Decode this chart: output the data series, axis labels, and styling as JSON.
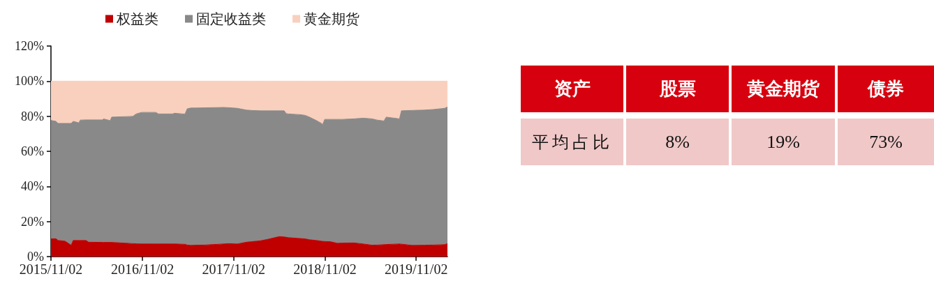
{
  "chart_data": [
    {
      "type": "area",
      "stacked": true,
      "legend": "top",
      "grid": false,
      "x": [
        "2015-11-02",
        "2015-11-22",
        "2015-11-30",
        "2015-12-28",
        "2016-01-22",
        "2016-01-30",
        "2016-02-22",
        "2016-02-27",
        "2016-03-21",
        "2016-04-01",
        "2016-05-27",
        "2016-05-30",
        "2016-06-26",
        "2016-07-02",
        "2016-09-24",
        "2016-10-08",
        "2016-10-30",
        "2016-12-25",
        "2017-01-05",
        "2017-03-02",
        "2017-03-10",
        "2017-04-21",
        "2017-04-30",
        "2017-05-14",
        "2017-06-02",
        "2017-07-09",
        "2017-09-22",
        "2017-10-11",
        "2017-11-17",
        "2017-12-23",
        "2018-01-12",
        "2018-02-17",
        "2018-03-17",
        "2018-05-03",
        "2018-05-23",
        "2018-05-31",
        "2018-06-09",
        "2018-07-26",
        "2018-08-15",
        "2018-09-01",
        "2018-09-28",
        "2018-10-18",
        "2018-10-24",
        "2018-11-01",
        "2018-11-23",
        "2018-12-21",
        "2019-01-10",
        "2019-02-26",
        "2019-04-04",
        "2019-05-10",
        "2019-05-30",
        "2019-06-26",
        "2019-07-05",
        "2019-08-27",
        "2019-09-04",
        "2019-10-16",
        "2019-12-03",
        "2020-01-08",
        "2020-02-24",
        "2020-03-06"
      ],
      "series": [
        {
          "name": "权益类",
          "color": "#c00000",
          "values": [
            10.1,
            10.2,
            9.2,
            8.8,
            6.5,
            9.2,
            9.2,
            9.2,
            9.2,
            8.2,
            8.1,
            8.1,
            8.1,
            8.1,
            7.4,
            7.3,
            7.2,
            7.2,
            7.2,
            7.2,
            7.2,
            7.0,
            6.6,
            6.4,
            6.5,
            6.6,
            7.2,
            7.4,
            7.2,
            8.2,
            8.5,
            9.0,
            9.8,
            11.4,
            11.2,
            11.0,
            10.8,
            10.3,
            10.1,
            9.6,
            9.2,
            8.8,
            8.7,
            8.6,
            8.5,
            7.6,
            7.7,
            7.8,
            7.2,
            6.5,
            6.6,
            6.8,
            6.9,
            7.2,
            7.1,
            6.4,
            6.5,
            6.6,
            6.8,
            7.4
          ]
        },
        {
          "name": "固定收益类",
          "color": "#898989",
          "values": [
            67.5,
            66.9,
            66.7,
            67.1,
            69.4,
            67.9,
            67.0,
            68.6,
            68.7,
            69.7,
            69.8,
            70.4,
            69.4,
            71.4,
            72.5,
            74.0,
            75.0,
            75.0,
            74.1,
            74.1,
            74.5,
            74.2,
            77.6,
            78.3,
            78.2,
            78.2,
            77.8,
            77.5,
            77.3,
            75.3,
            74.8,
            74.1,
            73.3,
            71.7,
            71.9,
            70.5,
            70.5,
            70.6,
            70.4,
            69.9,
            68.4,
            67.2,
            66.6,
            69.6,
            69.7,
            70.6,
            70.5,
            70.7,
            71.7,
            72.0,
            71.2,
            70.5,
            72.6,
            71.3,
            76.0,
            76.9,
            77.0,
            77.2,
            77.7,
            77.9
          ]
        },
        {
          "name": "黄金期货",
          "color": "#f9d0bd",
          "values": [
            22.4,
            22.9,
            24.1,
            24.1,
            24.1,
            22.9,
            23.8,
            22.2,
            22.1,
            22.1,
            22.1,
            21.5,
            22.5,
            20.5,
            20.1,
            18.7,
            17.8,
            17.8,
            18.7,
            18.7,
            18.3,
            18.8,
            15.8,
            15.3,
            15.3,
            15.2,
            15.0,
            15.1,
            15.5,
            16.5,
            16.7,
            16.9,
            16.9,
            16.9,
            16.9,
            18.5,
            18.7,
            19.1,
            19.5,
            20.5,
            22.4,
            24.0,
            24.7,
            21.8,
            21.8,
            21.8,
            21.8,
            21.5,
            21.1,
            21.5,
            22.2,
            22.7,
            20.5,
            21.5,
            16.9,
            16.7,
            16.5,
            16.2,
            15.5,
            14.7
          ]
        }
      ],
      "xlim": [
        "2015-11-02",
        "2020-03-06"
      ],
      "xticks": [
        {
          "value": "2015-11-02",
          "label": "2015/11/02"
        },
        {
          "value": "2016-11-02",
          "label": "2016/11/02"
        },
        {
          "value": "2017-11-02",
          "label": "2017/11/02"
        },
        {
          "value": "2018-11-02",
          "label": "2018/11/02"
        },
        {
          "value": "2019-11-02",
          "label": "2019/11/02"
        }
      ],
      "ylim": [
        0,
        120
      ],
      "yticks": [
        {
          "value": 0,
          "label": "0%"
        },
        {
          "value": 20,
          "label": "20%"
        },
        {
          "value": 40,
          "label": "40%"
        },
        {
          "value": 60,
          "label": "60%"
        },
        {
          "value": 80,
          "label": "80%"
        },
        {
          "value": 100,
          "label": "100%"
        },
        {
          "value": 120,
          "label": "120%"
        }
      ]
    },
    {
      "type": "other",
      "xlabel": "资产",
      "ylabel": "平均占比",
      "categories": [
        "股票",
        "黄金期货",
        "债券"
      ],
      "value_labels": [
        "8%",
        "19%",
        "73%"
      ]
    }
  ]
}
